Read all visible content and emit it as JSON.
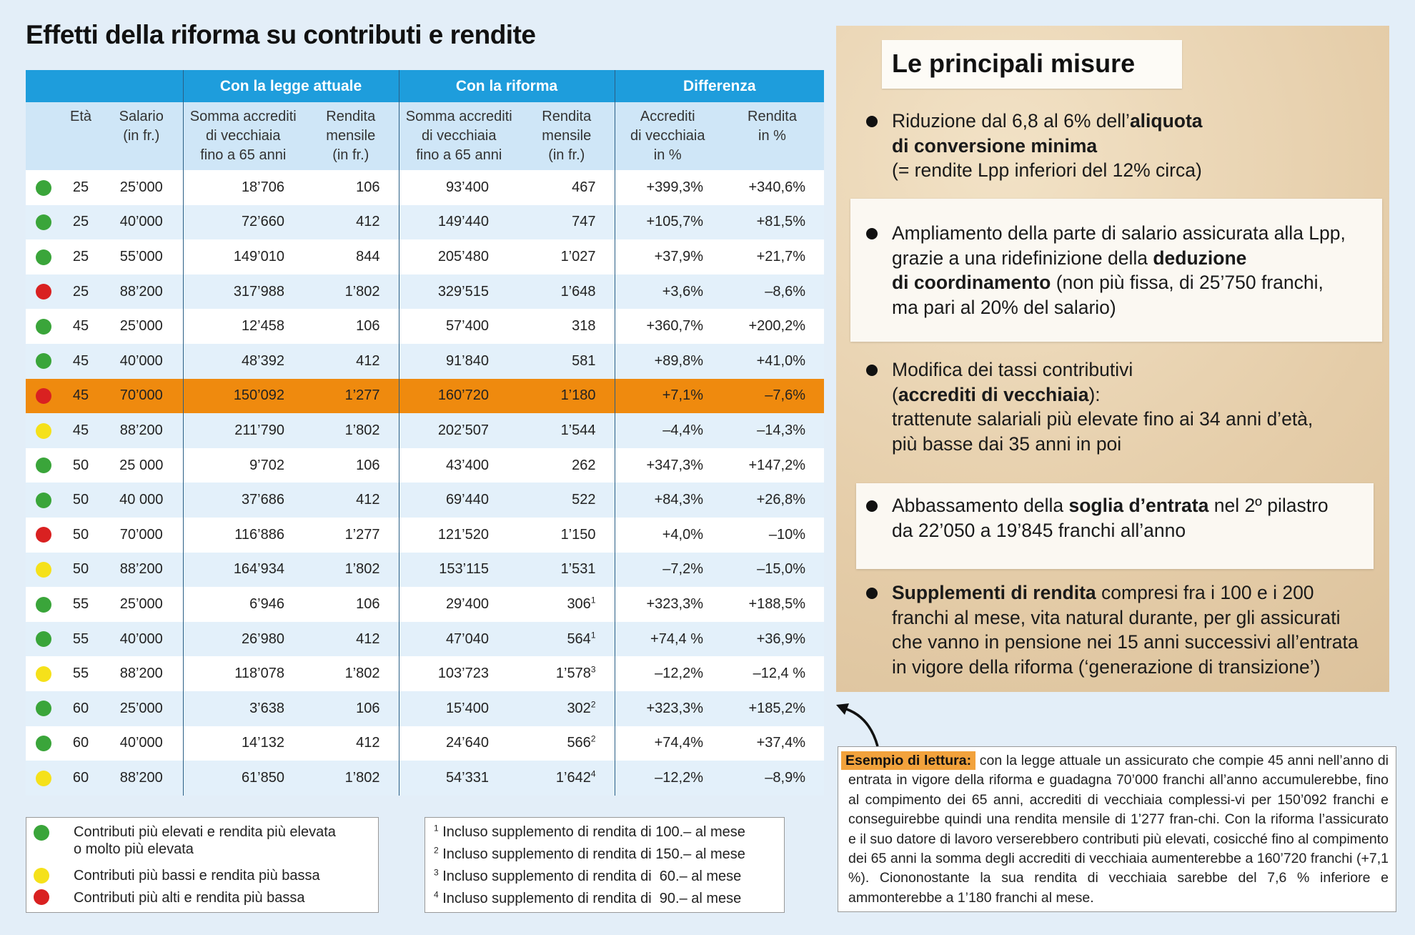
{
  "title": "Effetti della riforma su contributi e rendite",
  "table": {
    "groups": [
      "Con la legge attuale",
      "Con la riforma",
      "Differenza"
    ],
    "headers": {
      "eta": "Età",
      "salario": [
        "Salario",
        "(in fr.)"
      ],
      "somma1": [
        "Somma accrediti",
        "di vecchiaia",
        "fino a 65 anni"
      ],
      "rendita1": [
        "Rendita",
        "mensile",
        "(in fr.)"
      ],
      "somma2": [
        "Somma accrediti",
        "di vecchiaia",
        "fino a 65 anni"
      ],
      "rendita2": [
        "Rendita",
        "mensile",
        "(in fr.)"
      ],
      "accrediti_diff": [
        "Accrediti",
        "di vecchiaia",
        "in %"
      ],
      "rendita_diff": [
        "Rendita",
        "in %"
      ]
    },
    "rows": [
      {
        "color": "#3aa53a",
        "eta": "25",
        "salario": "25’000",
        "s1": "18’706",
        "r1": "106",
        "s2": "93’400",
        "r2": "467",
        "r2sup": "",
        "d1": "+399,3%",
        "d2": "+340,6%"
      },
      {
        "color": "#3aa53a",
        "eta": "25",
        "salario": "40’000",
        "s1": "72’660",
        "r1": "412",
        "s2": "149’440",
        "r2": "747",
        "r2sup": "",
        "d1": "+105,7%",
        "d2": "+81,5%"
      },
      {
        "color": "#3aa53a",
        "eta": "25",
        "salario": "55’000",
        "s1": "149’010",
        "r1": "844",
        "s2": "205’480",
        "r2": "1’027",
        "r2sup": "",
        "d1": "+37,9%",
        "d2": "+21,7%"
      },
      {
        "color": "#d92121",
        "eta": "25",
        "salario": "88’200",
        "s1": "317’988",
        "r1": "1’802",
        "s2": "329’515",
        "r2": "1’648",
        "r2sup": "",
        "d1": "+3,6%",
        "d2": "–8,6%"
      },
      {
        "color": "#3aa53a",
        "eta": "45",
        "salario": "25’000",
        "s1": "12’458",
        "r1": "106",
        "s2": "57’400",
        "r2": "318",
        "r2sup": "",
        "d1": "+360,7%",
        "d2": "+200,2%"
      },
      {
        "color": "#3aa53a",
        "eta": "45",
        "salario": "40’000",
        "s1": "48’392",
        "r1": "412",
        "s2": "91’840",
        "r2": "581",
        "r2sup": "",
        "d1": "+89,8%",
        "d2": "+41,0%"
      },
      {
        "color": "#d92121",
        "eta": "45",
        "salario": "70’000",
        "s1": "150’092",
        "r1": "1’277",
        "s2": "160’720",
        "r2": "1’180",
        "r2sup": "",
        "d1": "+7,1%",
        "d2": "–7,6%",
        "highlight": true
      },
      {
        "color": "#f5e11a",
        "eta": "45",
        "salario": "88’200",
        "s1": "211’790",
        "r1": "1’802",
        "s2": "202’507",
        "r2": "1’544",
        "r2sup": "",
        "d1": "–4,4%",
        "d2": "–14,3%"
      },
      {
        "color": "#3aa53a",
        "eta": "50",
        "salario": "25 000",
        "s1": "9’702",
        "r1": "106",
        "s2": "43’400",
        "r2": "262",
        "r2sup": "",
        "d1": "+347,3%",
        "d2": "+147,2%"
      },
      {
        "color": "#3aa53a",
        "eta": "50",
        "salario": "40 000",
        "s1": "37’686",
        "r1": "412",
        "s2": "69’440",
        "r2": "522",
        "r2sup": "",
        "d1": "+84,3%",
        "d2": "+26,8%"
      },
      {
        "color": "#d92121",
        "eta": "50",
        "salario": "70’000",
        "s1": "116’886",
        "r1": "1’277",
        "s2": "121’520",
        "r2": "1’150",
        "r2sup": "",
        "d1": "+4,0%",
        "d2": "–10%"
      },
      {
        "color": "#f5e11a",
        "eta": "50",
        "salario": "88’200",
        "s1": "164’934",
        "r1": "1’802",
        "s2": "153’115",
        "r2": "1’531",
        "r2sup": "",
        "d1": "–7,2%",
        "d2": "–15,0%"
      },
      {
        "color": "#3aa53a",
        "eta": "55",
        "salario": "25’000",
        "s1": "6’946",
        "r1": "106",
        "s2": "29’400",
        "r2": "306",
        "r2sup": "1",
        "d1": "+323,3%",
        "d2": "+188,5%"
      },
      {
        "color": "#3aa53a",
        "eta": "55",
        "salario": "40’000",
        "s1": "26’980",
        "r1": "412",
        "s2": "47’040",
        "r2": "564",
        "r2sup": "1",
        "d1": "+74,4 %",
        "d2": "+36,9%"
      },
      {
        "color": "#f5e11a",
        "eta": "55",
        "salario": "88’200",
        "s1": "118’078",
        "r1": "1’802",
        "s2": "103’723",
        "r2": "1’578",
        "r2sup": "3",
        "d1": "–12,2%",
        "d2": "–12,4 %"
      },
      {
        "color": "#3aa53a",
        "eta": "60",
        "salario": "25’000",
        "s1": "3’638",
        "r1": "106",
        "s2": "15’400",
        "r2": "302",
        "r2sup": "2",
        "d1": "+323,3%",
        "d2": "+185,2%"
      },
      {
        "color": "#3aa53a",
        "eta": "60",
        "salario": "40’000",
        "s1": "14’132",
        "r1": "412",
        "s2": "24’640",
        "r2": "566",
        "r2sup": "2",
        "d1": "+74,4%",
        "d2": "+37,4%"
      },
      {
        "color": "#f5e11a",
        "eta": "60",
        "salario": "88’200",
        "s1": "61’850",
        "r1": "1’802",
        "s2": "54’331",
        "r2": "1’642",
        "r2sup": "4",
        "d1": "–12,2%",
        "d2": "–8,9%"
      }
    ]
  },
  "legend": [
    {
      "color": "#3aa53a",
      "text": [
        "Contributi più elevati e rendita più elevata",
        "o molto più elevata"
      ]
    },
    {
      "color": "#f5e11a",
      "text": [
        "Contributi più bassi e rendita più bassa"
      ]
    },
    {
      "color": "#d92121",
      "text": [
        "Contributi più alti e rendita più bassa"
      ]
    }
  ],
  "notes": [
    {
      "n": "1",
      "text": "Incluso supplemento di rendita di 100.– al mese"
    },
    {
      "n": "2",
      "text": "Incluso supplemento di rendita di 150.– al mese"
    },
    {
      "n": "3",
      "text": "Incluso supplemento di rendita di  60.– al mese"
    },
    {
      "n": "4",
      "text": "Incluso supplemento di rendita di  90.– al mese"
    }
  ],
  "misure": {
    "title": "Le principali misure",
    "b1": {
      "p1": "Riduzione dal 6,8 al 6% dell’",
      "b1": "aliquota",
      "b2": "di conversione minima",
      "p2": "(= rendite Lpp inferiori del 12% circa)"
    },
    "b2": {
      "p1": "Ampliamento della parte di salario assicurata alla Lpp,",
      "p2": "grazie a una ridefinizione della ",
      "b1": "deduzione",
      "b2": "di coordinamento",
      "p3": " (non più fissa, di 25’750 franchi,",
      "p4": "ma pari al 20% del salario)"
    },
    "b3": {
      "p1": "Modifica dei tassi contributivi",
      "p2a": "(",
      "b1": "accrediti di vecchiaia",
      "p2b": "):",
      "p3": "trattenute salariali più elevate fino ai 34 anni d’età,",
      "p4": "più basse dai 35 anni in poi"
    },
    "b4": {
      "p1": "Abbassamento della ",
      "b1": "soglia d’entrata",
      "p2": " nel 2º pilastro",
      "p3": "da 22’050 a 19’845 franchi all’anno"
    },
    "b5": {
      "b1": "Supplementi di rendita",
      "p1": " compresi fra i 100 e i 200",
      "p2": "franchi al mese, vita natural durante, per gli assicurati",
      "p3": "che vanno in pensione nei 15 anni successivi all’entrata",
      "p4": "in vigore della riforma (‘generazione di transizione’)"
    }
  },
  "example": {
    "label": "Esempio di lettura:",
    "text": " con la legge attuale un assicurato che compie 45 anni nell’anno di entrata in vigore della riforma e guadagna 70’000 franchi all’anno accumulerebbe, fino al compimento dei 65 anni, accrediti di vecchiaia complessi-vi per 150’092 franchi e conseguirebbe quindi una rendita mensile di 1’277 fran-chi. Con la riforma l’assicurato e il suo datore di lavoro verserebbero contributi più elevati, cosicché fino al compimento dei 65 anni la somma degli accrediti di vecchiaia aumenterebbe a 160’720 franchi (+7,1 %). Ciononostante la sua rendita di vecchiaia sarebbe del 7,6 % inferiore e ammonterebbe a 1’180 franchi al mese."
  }
}
